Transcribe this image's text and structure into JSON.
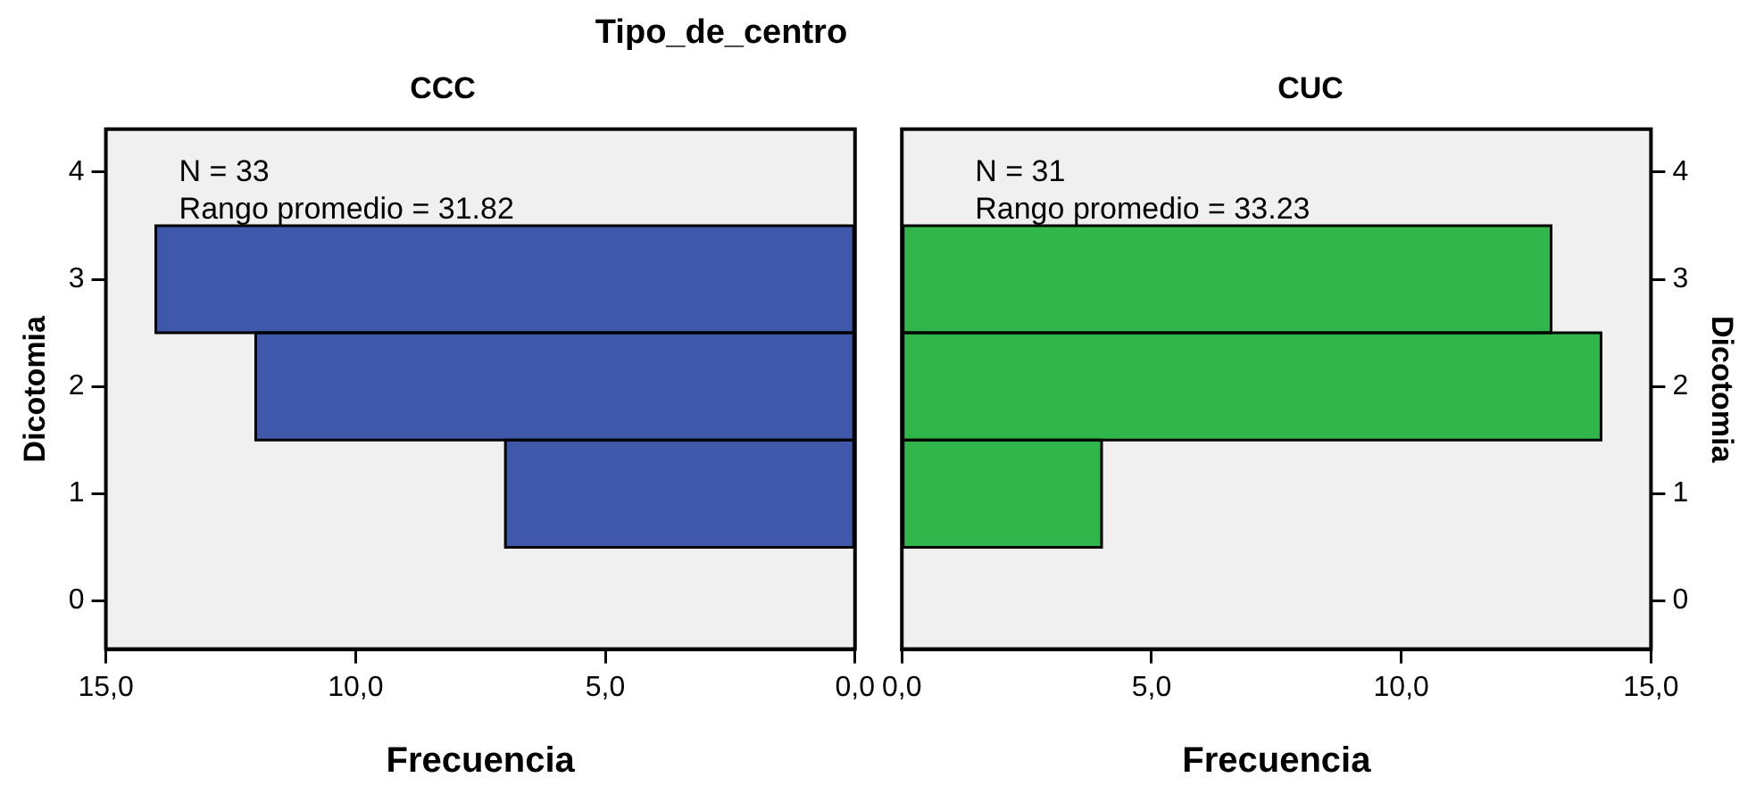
{
  "chart_data": [
    {
      "type": "histogram",
      "title": "Tipo_de_centro",
      "subtitle": "CCC",
      "orientation": "horizontal",
      "color": "#3f58aa",
      "bins": [
        0.5,
        1.5,
        2.5,
        3.5
      ],
      "values": [
        7,
        12,
        14
      ],
      "xlim": [
        15,
        0
      ],
      "xticks": [
        {
          "value": 15,
          "label": "15,0"
        },
        {
          "value": 10,
          "label": "10,0"
        },
        {
          "value": 5,
          "label": "5,0"
        },
        {
          "value": 0,
          "label": "0,0"
        }
      ],
      "ylim": [
        -0.45,
        4.4
      ],
      "yticks": [
        0,
        1,
        2,
        3,
        4
      ],
      "xlabel": "Frecuencia",
      "ylabel": "Dicotomia",
      "annotations": [
        "N = 33",
        "Rango promedio = 31.82"
      ]
    },
    {
      "type": "histogram",
      "subtitle": "CUC",
      "orientation": "horizontal",
      "color": "#30b64b",
      "bins": [
        0.5,
        1.5,
        2.5,
        3.5
      ],
      "values": [
        4,
        14,
        13
      ],
      "xlim": [
        0,
        15
      ],
      "xticks": [
        {
          "value": 0,
          "label": "0,0"
        },
        {
          "value": 5,
          "label": "5,0"
        },
        {
          "value": 10,
          "label": "10,0"
        },
        {
          "value": 15,
          "label": "15,0"
        }
      ],
      "ylim": [
        -0.45,
        4.4
      ],
      "yticks": [
        0,
        1,
        2,
        3,
        4
      ],
      "xlabel": "Frecuencia",
      "ylabel": "Dicotomia",
      "annotations": [
        "N = 31",
        "Rango promedio = 33.23"
      ]
    }
  ]
}
